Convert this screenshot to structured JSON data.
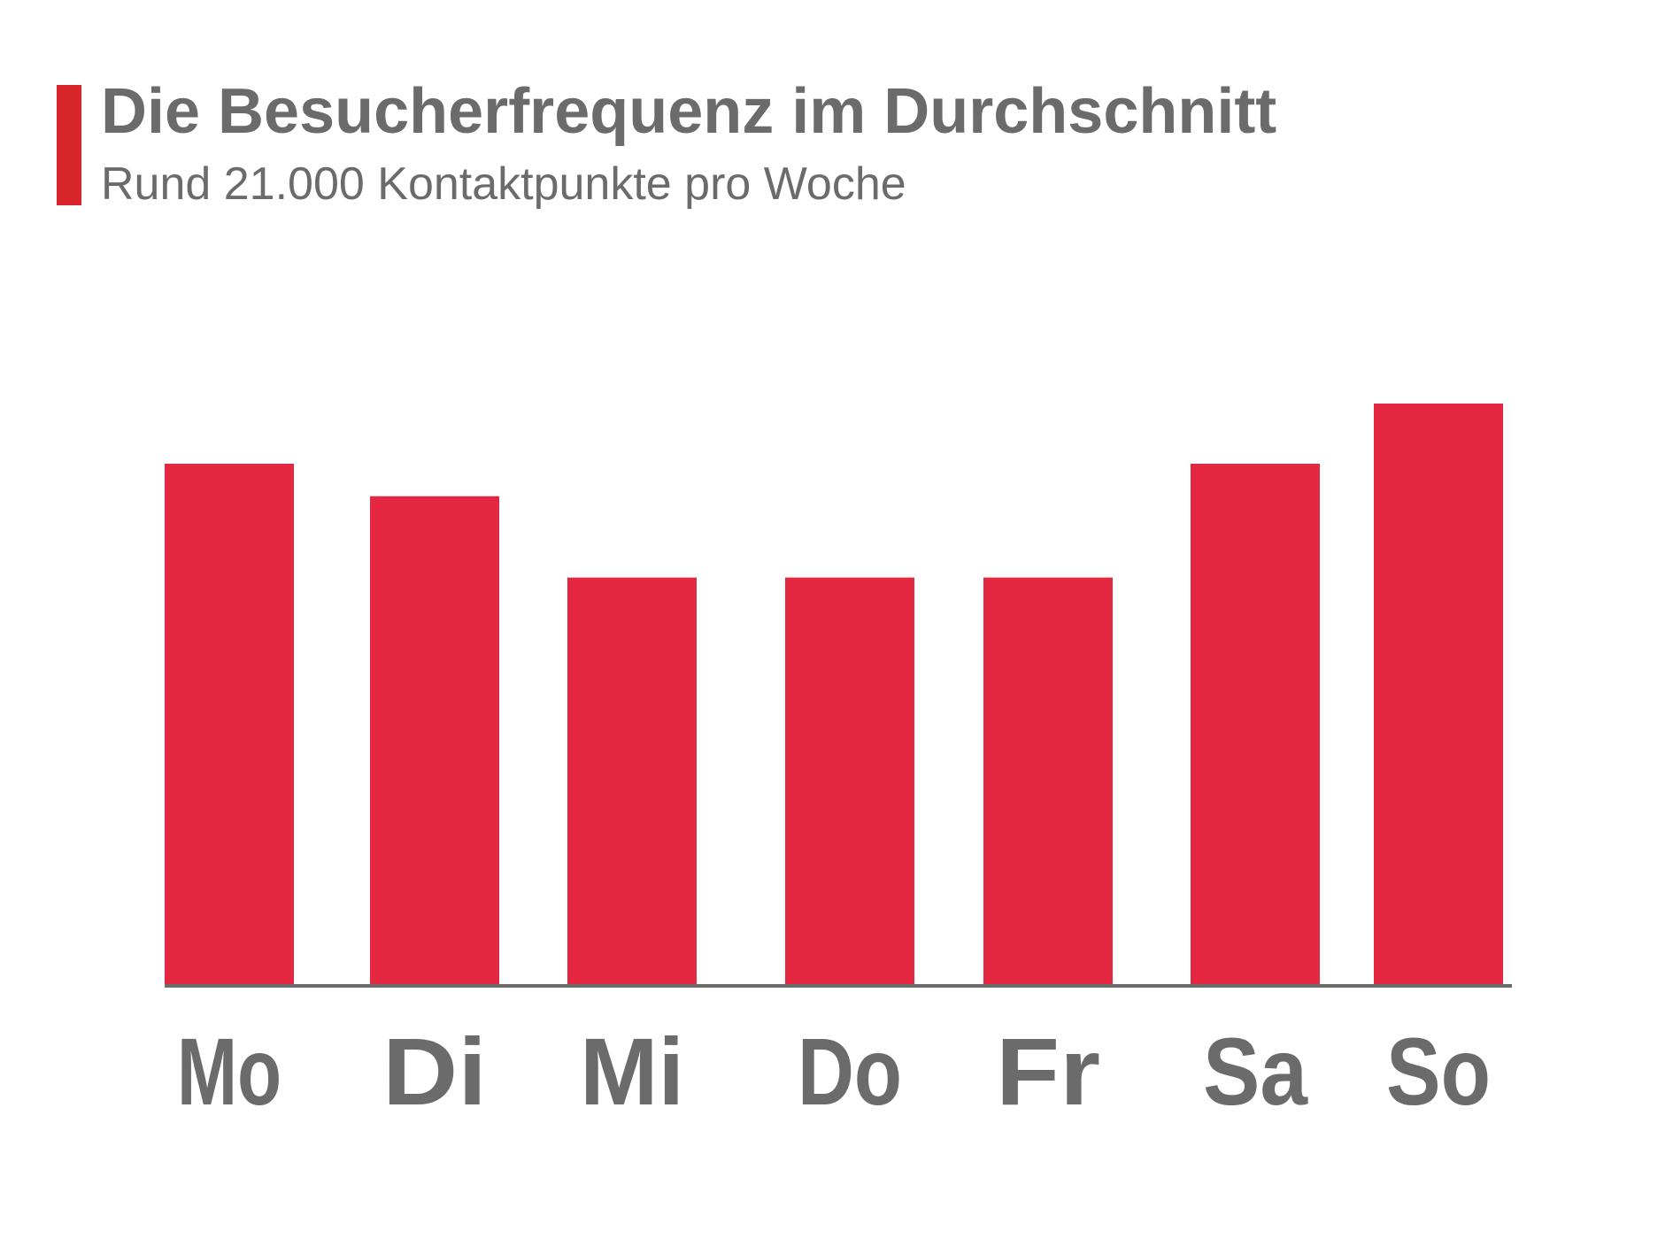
{
  "header": {
    "title": "Die Besucherfrequenz im Durchschnitt",
    "subtitle": "Rund 21.000 Kontaktpunkte pro Woche"
  },
  "colors": {
    "accent": "#d9262b",
    "bar": "#e52842",
    "text": "#6b6b6b",
    "axis": "#6b6b6b"
  },
  "chart_data": {
    "type": "bar",
    "categories": [
      "Mo",
      "Di",
      "Mi",
      "Do",
      "Fr",
      "Sa",
      "So"
    ],
    "values": [
      3200,
      3000,
      2500,
      2500,
      2500,
      3200,
      3570
    ],
    "title": "Die Besucherfrequenz im Durchschnitt",
    "xlabel": "",
    "ylabel": "",
    "ylim": [
      0,
      3570
    ],
    "grid": false,
    "legend": "none"
  }
}
